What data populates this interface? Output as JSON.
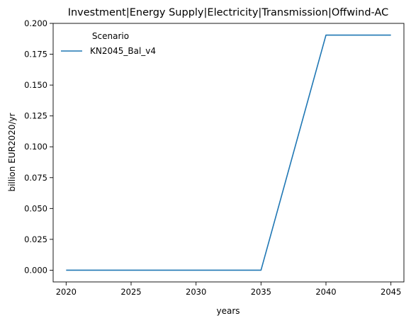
{
  "chart_data": {
    "type": "line",
    "title": "Investment|Energy Supply|Electricity|Transmission|Offwind-AC",
    "xlabel": "years",
    "ylabel": "billion EUR2020/yr",
    "x": [
      2020,
      2025,
      2030,
      2035,
      2040,
      2045
    ],
    "xticks": [
      "2020",
      "2025",
      "2030",
      "2035",
      "2040",
      "2045"
    ],
    "yticks": [
      "0.000",
      "0.025",
      "0.050",
      "0.075",
      "0.100",
      "0.125",
      "0.150",
      "0.175",
      "0.200"
    ],
    "xlim": [
      2019,
      2046
    ],
    "ylim": [
      -0.0095,
      0.2
    ],
    "grid": false,
    "legend": {
      "title": "Scenario",
      "placement": "top-left"
    },
    "series": [
      {
        "name": "KN2045_Bal_v4",
        "color": "#1f77b4",
        "values": [
          0,
          0,
          0,
          0,
          0.1905,
          0.1905
        ]
      }
    ]
  }
}
